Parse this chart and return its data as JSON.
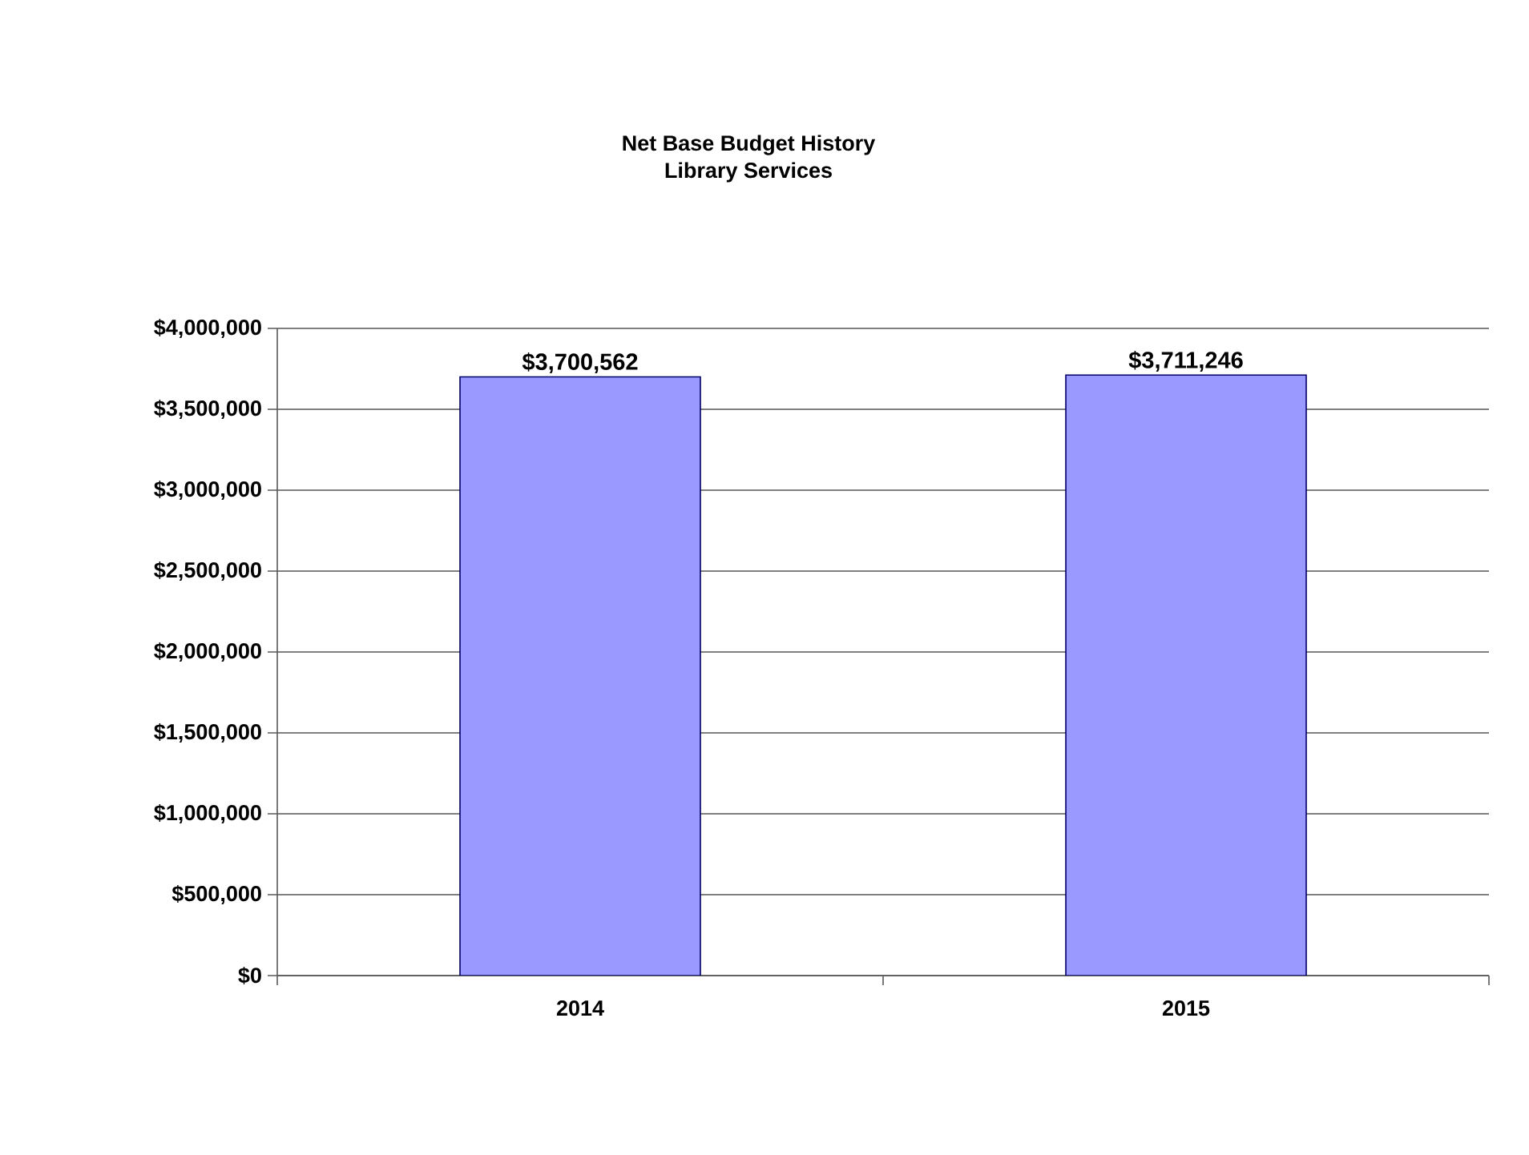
{
  "chart_data": {
    "type": "bar",
    "title": "Net Base Budget History",
    "subtitle": "Library Services",
    "categories": [
      "2014",
      "2015"
    ],
    "values": [
      3700562,
      3711246
    ],
    "value_labels": [
      "$3,700,562",
      "$3,711,246"
    ],
    "color": "#9999ff",
    "ylim": [
      0,
      4000000
    ],
    "yticks": [
      {
        "value": 0,
        "label": "$0"
      },
      {
        "value": 500000,
        "label": "$500,000"
      },
      {
        "value": 1000000,
        "label": "$1,000,000"
      },
      {
        "value": 1500000,
        "label": "$1,500,000"
      },
      {
        "value": 2000000,
        "label": "$2,000,000"
      },
      {
        "value": 2500000,
        "label": "$2,500,000"
      },
      {
        "value": 3000000,
        "label": "$3,000,000"
      },
      {
        "value": 3500000,
        "label": "$3,500,000"
      },
      {
        "value": 4000000,
        "label": "$4,000,000"
      }
    ],
    "grid": "y"
  }
}
